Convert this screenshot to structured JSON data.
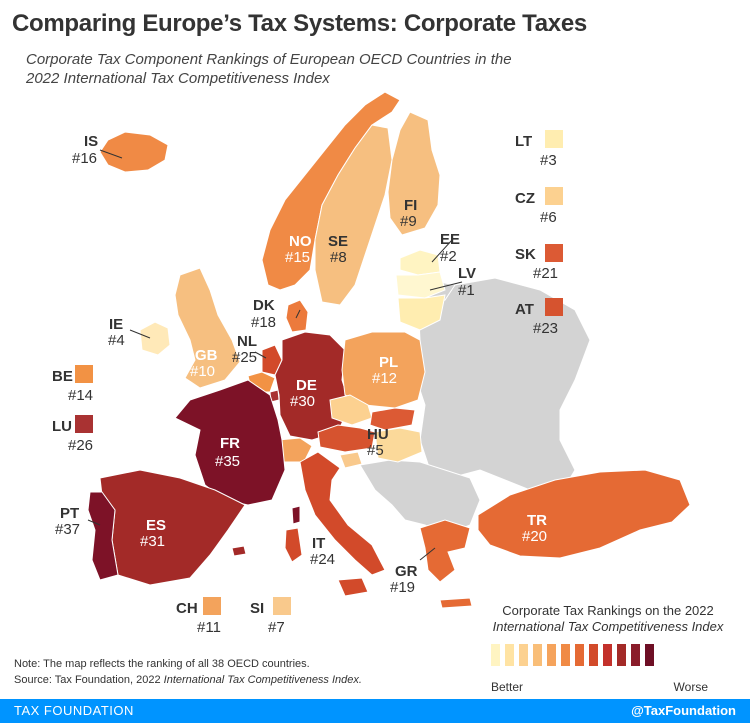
{
  "title": "Comparing Europe’s Tax Systems: Corporate Taxes",
  "subtitle": "Corporate Tax Component Rankings of European OECD Countries in the 2022 International Tax Competitiveness Index",
  "countries": {
    "IS": {
      "code": "IS",
      "rank": "#16",
      "color": "#f08a45"
    },
    "NO": {
      "code": "NO",
      "rank": "#15",
      "color": "#f08a45"
    },
    "SE": {
      "code": "SE",
      "rank": "#8",
      "color": "#f6bf80"
    },
    "FI": {
      "code": "FI",
      "rank": "#9",
      "color": "#f6bf80"
    },
    "EE": {
      "code": "EE",
      "rank": "#2",
      "color": "#fff4c2"
    },
    "LV": {
      "code": "LV",
      "rank": "#1",
      "color": "#fff7d0"
    },
    "LT": {
      "code": "LT",
      "rank": "#3",
      "color": "#ffedb0"
    },
    "DK": {
      "code": "DK",
      "rank": "#18",
      "color": "#ec7a3c"
    },
    "IE": {
      "code": "IE",
      "rank": "#4",
      "color": "#ffe9b8"
    },
    "GB": {
      "code": "GB",
      "rank": "#10",
      "color": "#f6bf80"
    },
    "NL": {
      "code": "NL",
      "rank": "#25",
      "color": "#d24a2a"
    },
    "BE": {
      "code": "BE",
      "rank": "#14",
      "color": "#f29244"
    },
    "LU": {
      "code": "LU",
      "rank": "#26",
      "color": "#a93232"
    },
    "DE": {
      "code": "DE",
      "rank": "#30",
      "color": "#a32a28"
    },
    "PL": {
      "code": "PL",
      "rank": "#12",
      "color": "#f3a35c"
    },
    "CZ": {
      "code": "CZ",
      "rank": "#6",
      "color": "#fcd190"
    },
    "SK": {
      "code": "SK",
      "rank": "#21",
      "color": "#dc5a34"
    },
    "AT": {
      "code": "AT",
      "rank": "#23",
      "color": "#d6532f"
    },
    "HU": {
      "code": "HU",
      "rank": "#5",
      "color": "#fbd99a"
    },
    "FR": {
      "code": "FR",
      "rank": "#35",
      "color": "#7d1227"
    },
    "CH": {
      "code": "CH",
      "rank": "#11",
      "color": "#f3a35c"
    },
    "SI": {
      "code": "SI",
      "rank": "#7",
      "color": "#f9c98c"
    },
    "IT": {
      "code": "IT",
      "rank": "#24",
      "color": "#d24a2a"
    },
    "PT": {
      "code": "PT",
      "rank": "#37",
      "color": "#7d1227"
    },
    "ES": {
      "code": "ES",
      "rank": "#31",
      "color": "#a32a28"
    },
    "GR": {
      "code": "GR",
      "rank": "#19",
      "color": "#e56a34"
    },
    "TR": {
      "code": "TR",
      "rank": "#20",
      "color": "#e56a34"
    }
  },
  "legend": {
    "title": "Corporate Tax Rankings on the 2022",
    "subtitle": "International Tax Competitiveness Index",
    "better": "Better",
    "worse": "Worse",
    "colors": [
      "#fff4c2",
      "#ffe3a3",
      "#fcd190",
      "#f9be78",
      "#f5a35c",
      "#f08a45",
      "#e56a34",
      "#d24a2a",
      "#c3312b",
      "#a32a28",
      "#8a1c2a",
      "#6e0f25"
    ]
  },
  "note": {
    "line1": "Note: The map reflects the ranking of all 38 OECD countries.",
    "source_prefix": "Source: Tax Foundation, 2022",
    "source_italic": "International Tax Competitiveness Index."
  },
  "footer": {
    "left": "TAX FOUNDATION",
    "right": "@TaxFoundation"
  },
  "other_color": "#d3d3d3"
}
